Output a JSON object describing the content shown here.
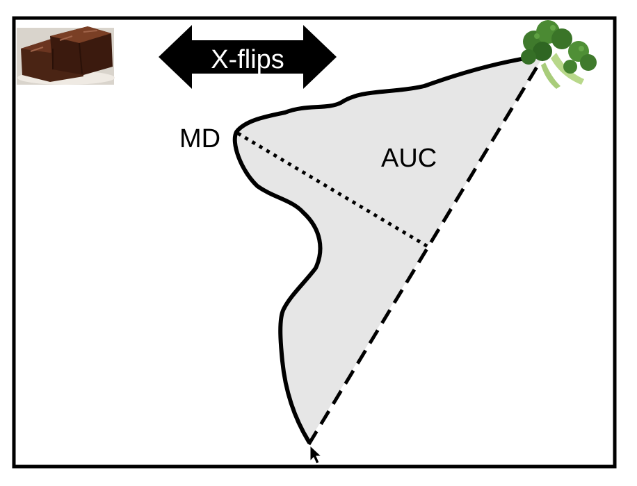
{
  "labels": {
    "x_flips": "X-flips",
    "md": "MD",
    "auc": "AUC"
  },
  "images": {
    "left": "brownie",
    "right": "broccoli"
  },
  "colors": {
    "frame": "#000000",
    "area_fill": "#e6e6e6",
    "background": "#ffffff",
    "arrow_fill": "#000000",
    "arrow_text": "#ffffff"
  }
}
